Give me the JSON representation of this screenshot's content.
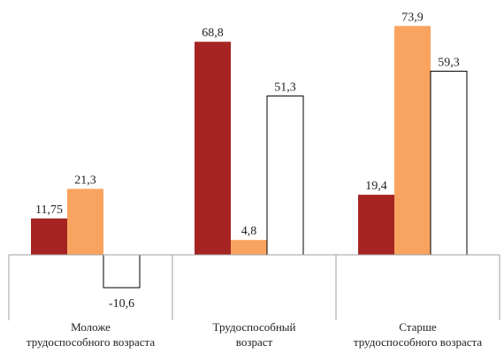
{
  "chart_data": {
    "type": "bar",
    "categories": [
      [
        "Моложе",
        "трудоспособного возраста"
      ],
      [
        "Трудоспособный",
        "возраст"
      ],
      [
        "Старше",
        "трудоспособного возраста"
      ]
    ],
    "series": [
      {
        "color": "#a52422",
        "values": [
          11.75,
          68.8,
          19.4
        ],
        "labels": [
          "11,75",
          "68,8",
          "19,4"
        ]
      },
      {
        "color": "#f9a360",
        "values": [
          21.3,
          4.8,
          73.9
        ],
        "labels": [
          "21,3",
          "4,8",
          "73,9"
        ]
      },
      {
        "color": "#ffffff",
        "stroke": "#000000",
        "values": [
          -10.6,
          51.3,
          59.3
        ],
        "labels": [
          "-10,6",
          "51,3",
          "59,3"
        ]
      }
    ],
    "ylim": [
      -12,
      80
    ],
    "grid": false,
    "legend": "none"
  }
}
